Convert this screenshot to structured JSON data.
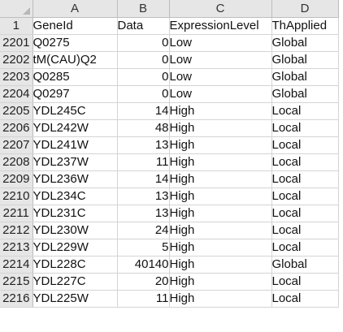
{
  "columns": [
    "A",
    "B",
    "C",
    "D"
  ],
  "rows": [
    {
      "num": "1",
      "cells": [
        "GeneId",
        "Data",
        "ExpressionLevel",
        "ThApplied"
      ],
      "numeric": [
        false,
        false,
        false,
        false
      ]
    },
    {
      "num": "2201",
      "cells": [
        "Q0275",
        "0",
        "Low",
        "Global"
      ],
      "numeric": [
        false,
        true,
        false,
        false
      ]
    },
    {
      "num": "2202",
      "cells": [
        "tM(CAU)Q2",
        "0",
        "Low",
        "Global"
      ],
      "numeric": [
        false,
        true,
        false,
        false
      ]
    },
    {
      "num": "2203",
      "cells": [
        "Q0285",
        "0",
        "Low",
        "Global"
      ],
      "numeric": [
        false,
        true,
        false,
        false
      ]
    },
    {
      "num": "2204",
      "cells": [
        "Q0297",
        "0",
        "Low",
        "Global"
      ],
      "numeric": [
        false,
        true,
        false,
        false
      ]
    },
    {
      "num": "2205",
      "cells": [
        "YDL245C",
        "14",
        "High",
        "Local"
      ],
      "numeric": [
        false,
        true,
        false,
        false
      ]
    },
    {
      "num": "2206",
      "cells": [
        "YDL242W",
        "48",
        "High",
        "Local"
      ],
      "numeric": [
        false,
        true,
        false,
        false
      ]
    },
    {
      "num": "2207",
      "cells": [
        "YDL241W",
        "13",
        "High",
        "Local"
      ],
      "numeric": [
        false,
        true,
        false,
        false
      ]
    },
    {
      "num": "2208",
      "cells": [
        "YDL237W",
        "11",
        "High",
        "Local"
      ],
      "numeric": [
        false,
        true,
        false,
        false
      ]
    },
    {
      "num": "2209",
      "cells": [
        "YDL236W",
        "14",
        "High",
        "Local"
      ],
      "numeric": [
        false,
        true,
        false,
        false
      ]
    },
    {
      "num": "2210",
      "cells": [
        "YDL234C",
        "13",
        "High",
        "Local"
      ],
      "numeric": [
        false,
        true,
        false,
        false
      ]
    },
    {
      "num": "2211",
      "cells": [
        "YDL231C",
        "13",
        "High",
        "Local"
      ],
      "numeric": [
        false,
        true,
        false,
        false
      ]
    },
    {
      "num": "2212",
      "cells": [
        "YDL230W",
        "24",
        "High",
        "Local"
      ],
      "numeric": [
        false,
        true,
        false,
        false
      ]
    },
    {
      "num": "2213",
      "cells": [
        "YDL229W",
        "5",
        "High",
        "Local"
      ],
      "numeric": [
        false,
        true,
        false,
        false
      ]
    },
    {
      "num": "2214",
      "cells": [
        "YDL228C",
        "40140",
        "High",
        "Global"
      ],
      "numeric": [
        false,
        true,
        false,
        false
      ]
    },
    {
      "num": "2215",
      "cells": [
        "YDL227C",
        "20",
        "High",
        "Local"
      ],
      "numeric": [
        false,
        true,
        false,
        false
      ]
    },
    {
      "num": "2216",
      "cells": [
        "YDL225W",
        "11",
        "High",
        "Local"
      ],
      "numeric": [
        false,
        true,
        false,
        false
      ]
    }
  ]
}
